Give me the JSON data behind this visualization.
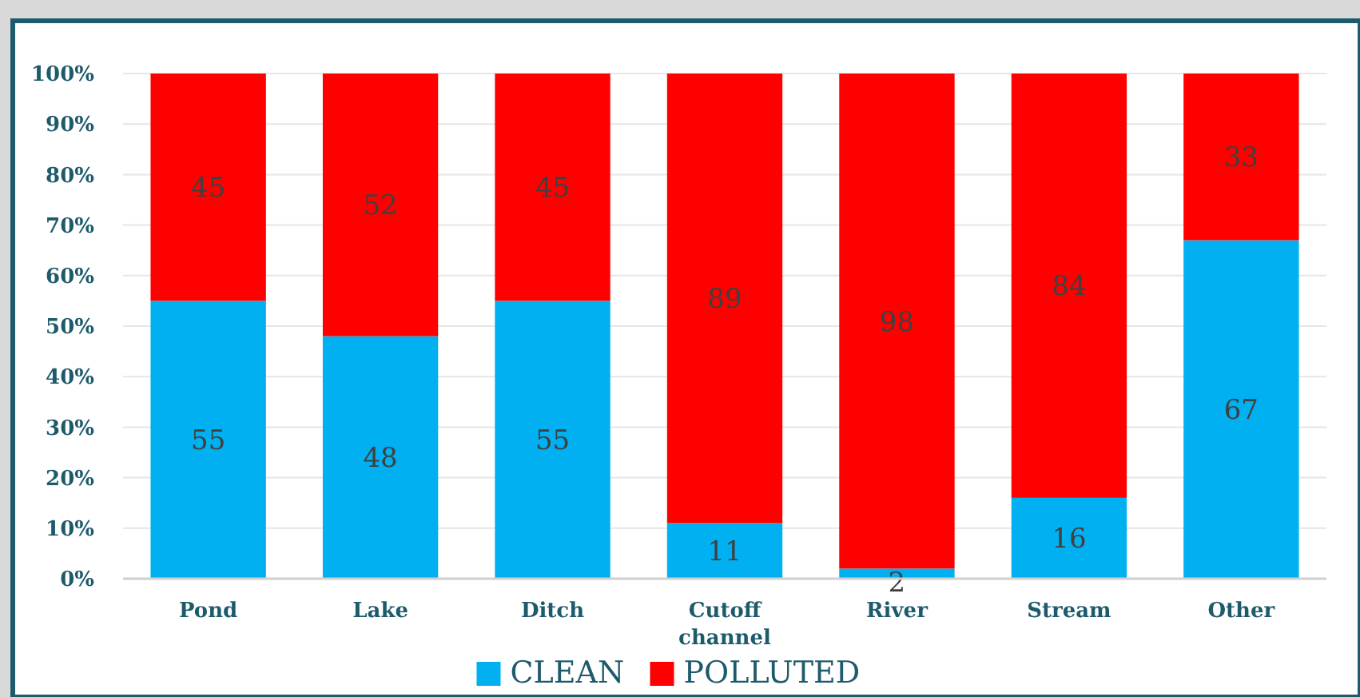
{
  "chart_data": {
    "type": "bar",
    "stacked": true,
    "categories": [
      "Pond",
      "Lake",
      "Ditch",
      "Cutoff channel",
      "River",
      "Stream",
      "Other"
    ],
    "series": [
      {
        "name": "CLEAN",
        "color": "#00b0f0",
        "values": [
          55,
          48,
          55,
          11,
          2,
          16,
          67
        ]
      },
      {
        "name": "POLLUTED",
        "color": "#ff0000",
        "values": [
          45,
          52,
          45,
          89,
          98,
          84,
          33
        ]
      }
    ],
    "ylim": [
      0,
      100
    ],
    "yticks": [
      {
        "value": 0,
        "label": "0%"
      },
      {
        "value": 10,
        "label": "10%"
      },
      {
        "value": 20,
        "label": "20%"
      },
      {
        "value": 30,
        "label": "30%"
      },
      {
        "value": 40,
        "label": "40%"
      },
      {
        "value": 50,
        "label": "50%"
      },
      {
        "value": 60,
        "label": "60%"
      },
      {
        "value": 70,
        "label": "70%"
      },
      {
        "value": 80,
        "label": "80%"
      },
      {
        "value": 90,
        "label": "90%"
      },
      {
        "value": 100,
        "label": "100%"
      }
    ],
    "grid": "y",
    "legend": "bottom",
    "data_labels": true
  }
}
